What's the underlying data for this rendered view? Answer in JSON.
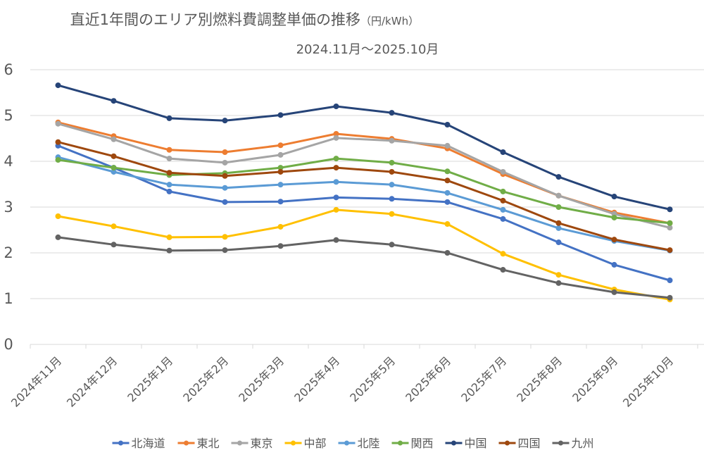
{
  "chart_data": {
    "type": "line",
    "title": "直近1年間のエリア別燃料費調整単価の推移",
    "title_unit": "（円/kWh）",
    "subtitle": "2024.11月～2025.10月",
    "xlabel": "",
    "ylabel": "",
    "ylim": [
      0,
      6
    ],
    "yticks": [
      0,
      1,
      2,
      3,
      4,
      5,
      6
    ],
    "grid": true,
    "legend_position": "bottom",
    "categories": [
      "2024年11月",
      "2024年12月",
      "2025年1月",
      "2025年2月",
      "2025年3月",
      "2025年4月",
      "2025年5月",
      "2025年6月",
      "2025年7月",
      "2025年8月",
      "2025年9月",
      "2025年10月"
    ],
    "series": [
      {
        "name": "北海道",
        "color": "#4472C4",
        "values": [
          4.34,
          3.86,
          3.34,
          3.11,
          3.12,
          3.21,
          3.18,
          3.11,
          2.74,
          2.23,
          1.74,
          1.4
        ]
      },
      {
        "name": "東北",
        "color": "#ED7D31",
        "values": [
          4.85,
          4.55,
          4.25,
          4.2,
          4.35,
          4.6,
          4.49,
          4.28,
          3.72,
          3.25,
          2.88,
          2.65
        ]
      },
      {
        "name": "東京",
        "color": "#A5A5A5",
        "values": [
          4.82,
          4.48,
          4.06,
          3.97,
          4.14,
          4.51,
          4.45,
          4.34,
          3.77,
          3.25,
          2.85,
          2.55
        ]
      },
      {
        "name": "中部",
        "color": "#FFC000",
        "values": [
          2.8,
          2.58,
          2.34,
          2.35,
          2.57,
          2.94,
          2.85,
          2.63,
          1.98,
          1.52,
          1.2,
          0.98
        ]
      },
      {
        "name": "北陸",
        "color": "#5B9BD5",
        "values": [
          4.09,
          3.77,
          3.49,
          3.42,
          3.49,
          3.55,
          3.49,
          3.31,
          2.94,
          2.54,
          2.26,
          2.05
        ]
      },
      {
        "name": "関西",
        "color": "#70AD47",
        "values": [
          4.03,
          3.86,
          3.7,
          3.74,
          3.86,
          4.06,
          3.97,
          3.78,
          3.34,
          3.0,
          2.77,
          2.65
        ]
      },
      {
        "name": "中国",
        "color": "#264478",
        "values": [
          5.66,
          5.32,
          4.94,
          4.89,
          5.01,
          5.2,
          5.06,
          4.8,
          4.2,
          3.66,
          3.23,
          2.95
        ]
      },
      {
        "name": "四国",
        "color": "#9E480E",
        "values": [
          4.42,
          4.11,
          3.75,
          3.68,
          3.77,
          3.86,
          3.77,
          3.58,
          3.14,
          2.65,
          2.29,
          2.06
        ]
      },
      {
        "name": "九州",
        "color": "#636363",
        "values": [
          2.34,
          2.18,
          2.05,
          2.06,
          2.15,
          2.28,
          2.18,
          2.0,
          1.63,
          1.34,
          1.14,
          1.02
        ]
      }
    ]
  }
}
